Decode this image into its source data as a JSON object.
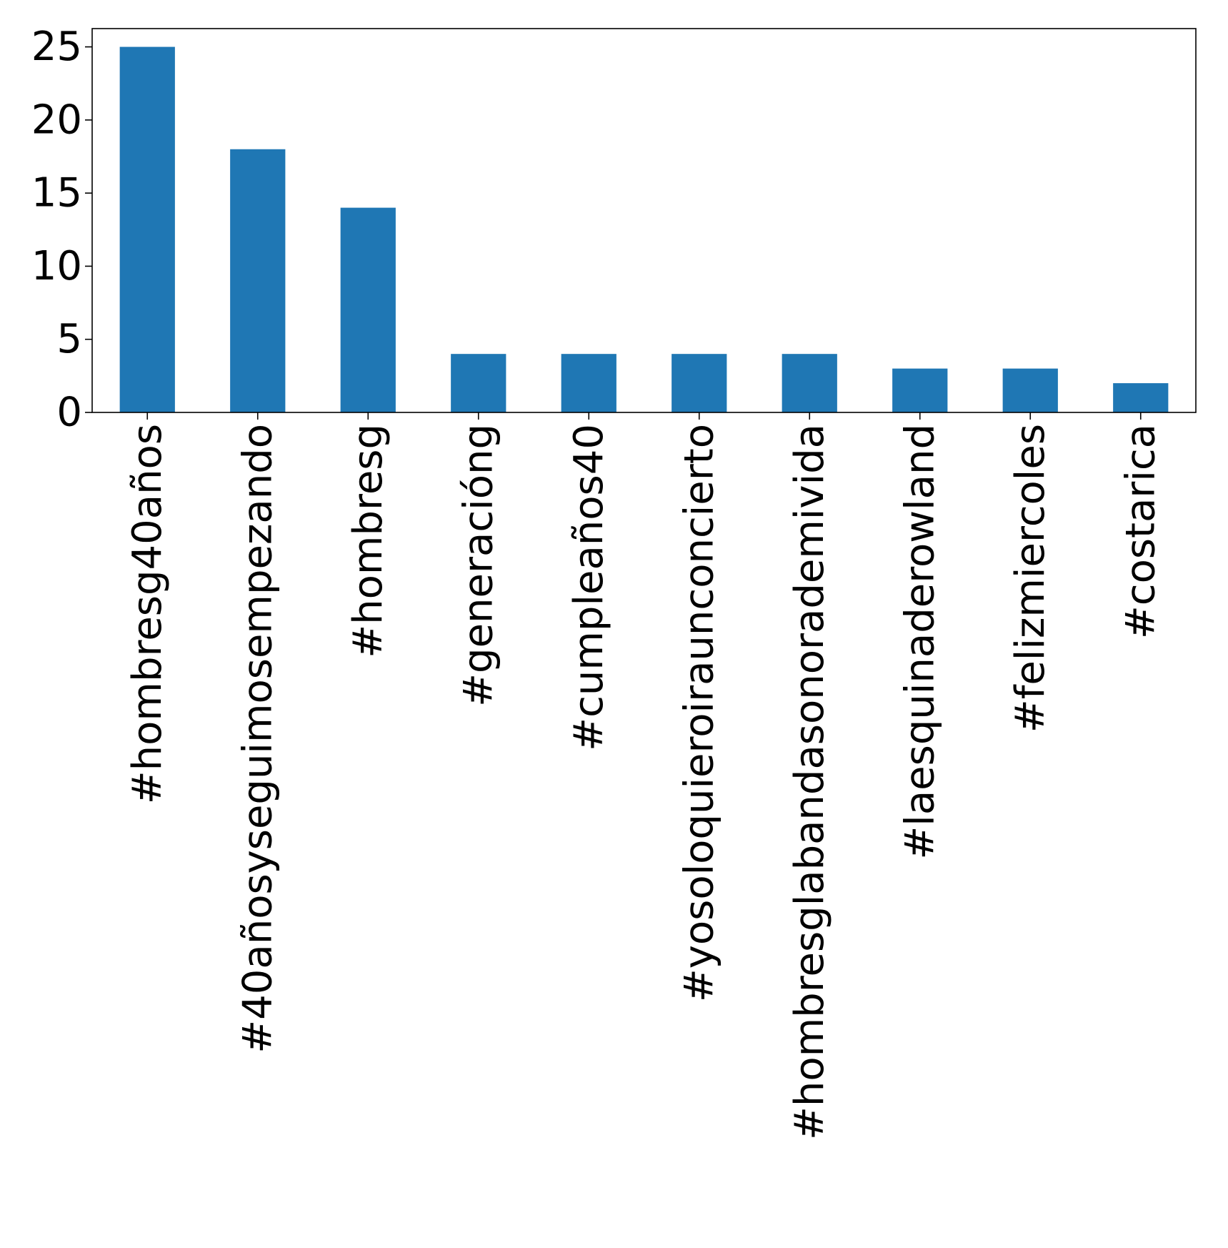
{
  "chart_data": {
    "type": "bar",
    "title": "",
    "xlabel": "",
    "ylabel": "",
    "categories": [
      "#hombresg40años",
      "#40añosyseguimosempezando",
      "#hombresg",
      "#generacióng",
      "#cumpleaños40",
      "#yosoloquieroiraunconcierto",
      "#hombresglabandasonorademivida",
      "#laesquinaderowland",
      "#felizmiercoles",
      "#costarica"
    ],
    "values": [
      25,
      18,
      14,
      4,
      4,
      4,
      4,
      3,
      3,
      2
    ],
    "ylim": [
      0,
      26.25
    ],
    "yticks": [
      0,
      5,
      10,
      15,
      20,
      25
    ],
    "bar_color": "#1f77b4",
    "grid": false,
    "legend": "none"
  }
}
